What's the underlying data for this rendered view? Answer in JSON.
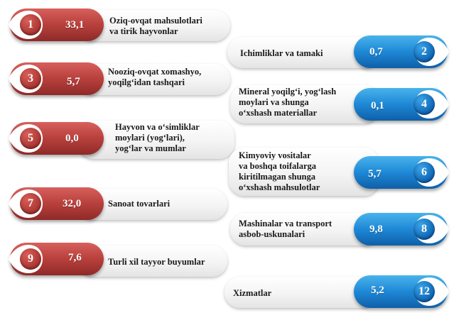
{
  "items": [
    {
      "num": "1",
      "value": "33,1",
      "label": "Oziq-ovqat mahsulotlari\nva tirik hayvonlar"
    },
    {
      "num": "2",
      "value": "0,7",
      "label": "Ichimliklar va tamaki"
    },
    {
      "num": "3",
      "value": "5,7",
      "label": "Nooziq-ovqat xomashyo,\nyoqilg‘idan tashqari"
    },
    {
      "num": "4",
      "value": "0,1",
      "label": "Mineral yoqilg‘i, yog‘lash\nmoylari va shunga\no‘xshash materiallar"
    },
    {
      "num": "5",
      "value": "0,0",
      "label": "Hayvon va o‘simliklar\nmoylari (yog‘lari),\nyog‘lar va mumlar"
    },
    {
      "num": "6",
      "value": "5,7",
      "label": "Kimyoviy vositalar\nva boshqa toifalarga\nkiritilmagan shunga\no‘xshash mahsulotlar"
    },
    {
      "num": "7",
      "value": "32,0",
      "label": "Sanoat tovarlari"
    },
    {
      "num": "8",
      "value": "9,8",
      "label": "Mashinalar va transport\nasbob-uskunalari"
    },
    {
      "num": "9",
      "value": "7,6",
      "label": "Turli xil tayyor buyumlar"
    },
    {
      "num": "12",
      "value": "5,2",
      "label": "Xizmatlar"
    }
  ],
  "colors": {
    "left_accent": "#b8403c",
    "right_accent": "#1e88d6"
  }
}
